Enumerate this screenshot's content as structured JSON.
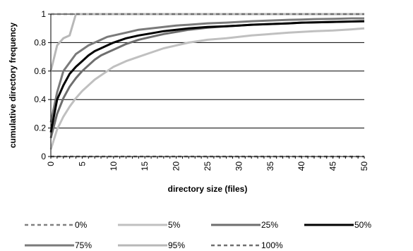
{
  "chart_data": {
    "type": "line",
    "title": "",
    "xlabel": "directory size (files)",
    "ylabel": "cumulative directory frequency",
    "xlim": [
      0,
      50
    ],
    "ylim": [
      0,
      1
    ],
    "x_ticks": [
      0,
      5,
      10,
      15,
      20,
      25,
      30,
      35,
      40,
      45,
      50
    ],
    "y_ticks": [
      0,
      0.2,
      0.4,
      0.6,
      0.8,
      1
    ],
    "y_tick_labels": [
      "0",
      "0.2",
      "0.4",
      "0.6",
      "0.8",
      "1"
    ],
    "grid": "horizontal",
    "legend_position": "bottom",
    "x": [
      0,
      1,
      2,
      3,
      4,
      5,
      6,
      7,
      8,
      9,
      10,
      12,
      14,
      16,
      18,
      20,
      22,
      25,
      28,
      30,
      32,
      35,
      38,
      40,
      42,
      45,
      48,
      50
    ],
    "series": [
      {
        "name": "0%",
        "color": "#808080",
        "dash": "dashed",
        "values": [
          0,
          0,
          0,
          0,
          0,
          0,
          0,
          0,
          0,
          0,
          0,
          0,
          0,
          0,
          0,
          0,
          0,
          0,
          0,
          0,
          0,
          0,
          0,
          0,
          0,
          0,
          0,
          0
        ]
      },
      {
        "name": "5%",
        "color": "#c0c0c0",
        "dash": "solid",
        "values": [
          0.05,
          0.19,
          0.28,
          0.35,
          0.41,
          0.46,
          0.5,
          0.54,
          0.57,
          0.6,
          0.63,
          0.67,
          0.7,
          0.73,
          0.76,
          0.78,
          0.8,
          0.82,
          0.83,
          0.84,
          0.85,
          0.86,
          0.87,
          0.875,
          0.88,
          0.885,
          0.893,
          0.9
        ]
      },
      {
        "name": "25%",
        "color": "#6e6e6e",
        "dash": "solid",
        "values": [
          0.13,
          0.3,
          0.41,
          0.49,
          0.55,
          0.6,
          0.64,
          0.68,
          0.71,
          0.73,
          0.75,
          0.79,
          0.82,
          0.84,
          0.86,
          0.875,
          0.89,
          0.905,
          0.915,
          0.92,
          0.925,
          0.93,
          0.935,
          0.94,
          0.942,
          0.945,
          0.948,
          0.95
        ]
      },
      {
        "name": "50%",
        "color": "#000000",
        "dash": "solid",
        "values": [
          0.17,
          0.4,
          0.5,
          0.58,
          0.63,
          0.67,
          0.71,
          0.74,
          0.76,
          0.78,
          0.8,
          0.83,
          0.85,
          0.865,
          0.88,
          0.89,
          0.9,
          0.91,
          0.915,
          0.92,
          0.925,
          0.93,
          0.935,
          0.94,
          0.942,
          0.945,
          0.948,
          0.95
        ]
      },
      {
        "name": "75%",
        "color": "#7a7a7a",
        "dash": "solid",
        "values": [
          0.24,
          0.45,
          0.6,
          0.66,
          0.72,
          0.75,
          0.78,
          0.8,
          0.82,
          0.84,
          0.85,
          0.87,
          0.89,
          0.9,
          0.91,
          0.92,
          0.925,
          0.935,
          0.94,
          0.945,
          0.95,
          0.955,
          0.96,
          0.962,
          0.965,
          0.967,
          0.97,
          0.97
        ]
      },
      {
        "name": "95%",
        "color": "#b8b8b8",
        "dash": "solid",
        "values": [
          0.6,
          0.78,
          0.83,
          0.85,
          1,
          1,
          1,
          1,
          1,
          1,
          1,
          1,
          1,
          1,
          1,
          1,
          1,
          1,
          1,
          1,
          1,
          1,
          1,
          1,
          1,
          1,
          1,
          1
        ]
      },
      {
        "name": "100%",
        "color": "#707070",
        "dash": "dashed",
        "values": [
          1,
          1,
          1,
          1,
          1,
          1,
          1,
          1,
          1,
          1,
          1,
          1,
          1,
          1,
          1,
          1,
          1,
          1,
          1,
          1,
          1,
          1,
          1,
          1,
          1,
          1,
          1,
          1
        ]
      }
    ]
  }
}
